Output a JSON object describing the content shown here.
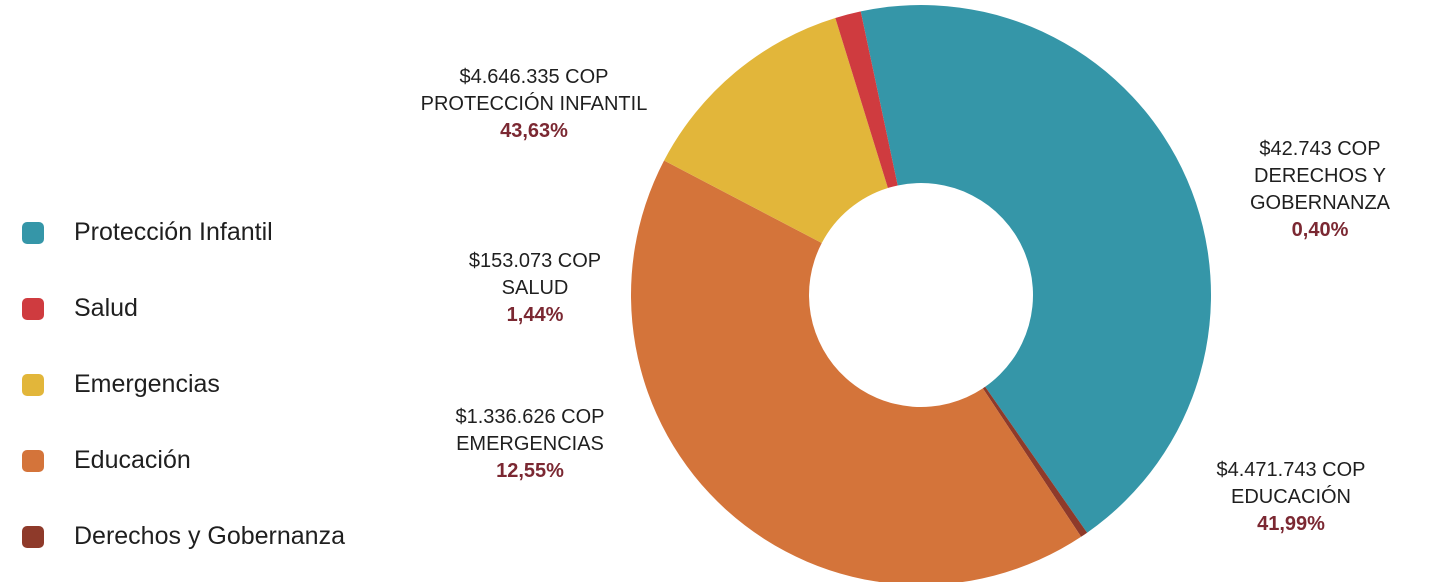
{
  "chart_data": {
    "type": "pie",
    "donut": true,
    "legend_position": "left",
    "slices": [
      {
        "label": "Protección Infantil",
        "amount": "$4.646.335 COP",
        "category": "PROTECCIÓN INFANTIL",
        "percent_label": "43,63%",
        "value": 43.63,
        "color": "#3596a8"
      },
      {
        "label": "Derechos y Gobernanza",
        "amount": "$42.743 COP",
        "category_line1": "DERECHOS Y",
        "category_line2": "GOBERNANZA",
        "percent_label": "0,40%",
        "value": 0.4,
        "color": "#8e3a2a"
      },
      {
        "label": "Educación",
        "amount": "$4.471.743 COP",
        "category": "EDUCACIÓN",
        "percent_label": "41,99%",
        "value": 41.99,
        "color": "#d4743a"
      },
      {
        "label": "Emergencias",
        "amount": "$1.336.626 COP",
        "category": "EMERGENCIAS",
        "percent_label": "12,55%",
        "value": 12.55,
        "color": "#e2b63a"
      },
      {
        "label": "Salud",
        "amount": "$153.073 COP",
        "category": "SALUD",
        "percent_label": "1,44%",
        "value": 1.44,
        "color": "#cf3b3f"
      }
    ],
    "legend": [
      {
        "label": "Protección Infantil",
        "color": "#3596a8"
      },
      {
        "label": "Salud",
        "color": "#cf3b3f"
      },
      {
        "label": "Emergencias",
        "color": "#e2b63a"
      },
      {
        "label": "Educación",
        "color": "#d4743a"
      },
      {
        "label": "Derechos y Gobernanza",
        "color": "#8e3a2a"
      }
    ]
  }
}
